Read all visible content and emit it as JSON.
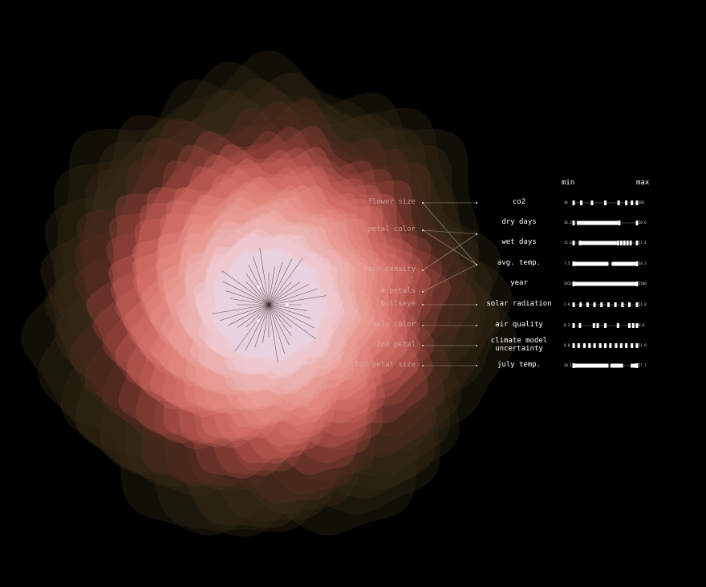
{
  "header": {
    "min": "min",
    "max": "max"
  },
  "features": [
    "flower size",
    "petal color",
    "vein density",
    "# petals",
    "bullseye",
    "vein color",
    "2nd petal",
    "2nd petal size"
  ],
  "variables": [
    {
      "name": "co2",
      "min": "44",
      "max": "105",
      "ticks": [
        0,
        0.12,
        0.29,
        0.5,
        0.71,
        0.83,
        0.92,
        1
      ],
      "fill": []
    },
    {
      "name": "dry days",
      "min": "26.3",
      "max": "30.6",
      "ticks": [
        0,
        0.72,
        1
      ],
      "fill": [
        [
          0.05,
          0.7
        ]
      ]
    },
    {
      "name": "wet days",
      "min": "12.6",
      "max": "17.4",
      "ticks": [
        0,
        0.1,
        0.7,
        0.75,
        0.8,
        0.85,
        0.9,
        1
      ],
      "fill": [
        [
          0.1,
          0.68
        ]
      ]
    },
    {
      "name": "avg. temp.",
      "min": "7.5",
      "max": "14.5",
      "ticks": [
        0,
        1
      ],
      "fill": [
        [
          0,
          0.55
        ],
        [
          0.6,
          1
        ]
      ]
    },
    {
      "name": "year",
      "min": "2023",
      "max": "2100",
      "ticks": [
        0,
        1
      ],
      "fill": [
        [
          0,
          1
        ]
      ]
    },
    {
      "name": "solar radiation",
      "min": "2.0",
      "max": "11.0",
      "ticks": [
        0,
        0.11,
        0.22,
        0.33,
        0.44,
        0.55,
        0.66,
        0.77,
        0.88,
        1
      ],
      "fill": []
    },
    {
      "name": "air quality",
      "min": "0.3",
      "max": "0.6",
      "ticks": [
        0,
        0.1,
        0.32,
        0.38,
        0.5,
        0.7,
        0.88,
        0.94,
        1
      ],
      "fill": []
    },
    {
      "name": "climate model uncertainty",
      "name_lines": [
        "climate model",
        "uncertainty"
      ],
      "min": "0.0",
      "max": "11.0",
      "ticks": [
        0,
        0.08,
        0.17,
        0.25,
        0.33,
        0.42,
        0.5,
        0.58,
        0.67,
        0.75,
        0.83,
        0.92,
        1
      ],
      "fill": []
    },
    {
      "name": "july temp.",
      "min": "20.1",
      "max": "27.7",
      "ticks": [
        0,
        1
      ],
      "fill": [
        [
          0,
          0.55
        ],
        [
          0.58,
          0.78
        ],
        [
          0.9,
          1
        ]
      ]
    }
  ],
  "links": [
    [
      "flower size",
      "co2"
    ],
    [
      "flower size",
      "avg. temp."
    ],
    [
      "petal color",
      "dry days"
    ],
    [
      "petal color",
      "avg. temp."
    ],
    [
      "vein density",
      "dry days"
    ],
    [
      "# petals",
      "avg. temp."
    ],
    [
      "bullseye",
      "solar radiation"
    ],
    [
      "vein color",
      "air quality"
    ],
    [
      "2nd petal",
      "climate model uncertainty"
    ],
    [
      "2nd petal size",
      "july temp."
    ]
  ],
  "colors": {
    "background": "#000000",
    "petal_core": "#f0c8c8",
    "petal_mid": "#e07a72",
    "petal_outer": "#3a2a14",
    "label": "#d9b0a8"
  }
}
